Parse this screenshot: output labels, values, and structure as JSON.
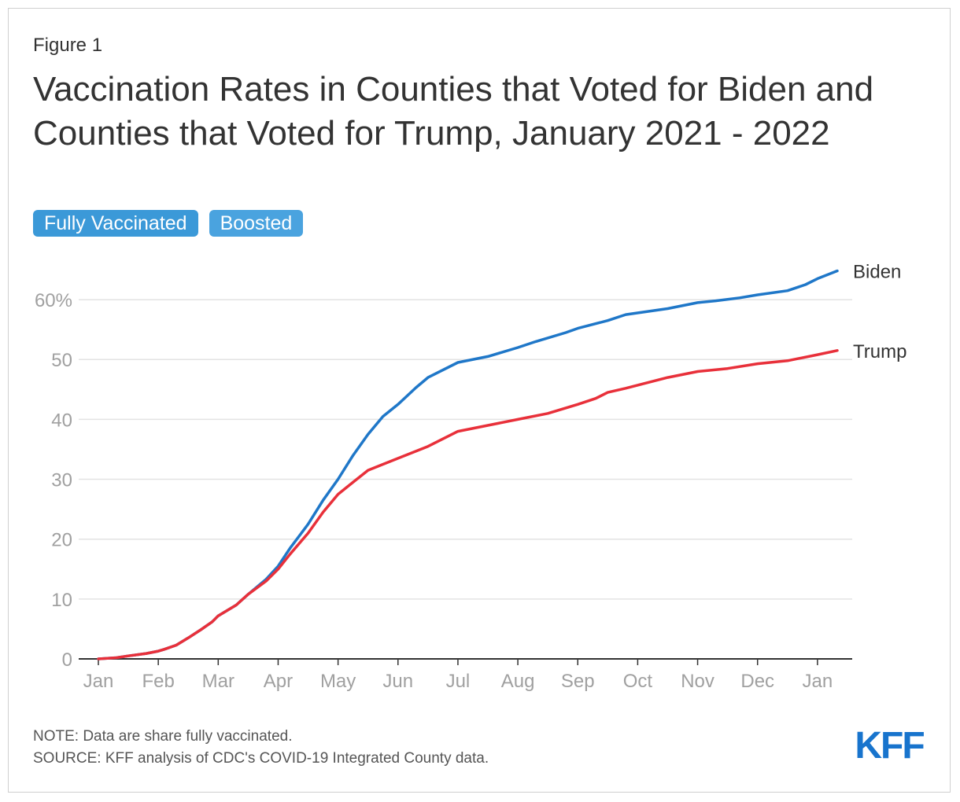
{
  "figure_label": "Figure 1",
  "title": "Vaccination Rates in Counties that Voted for Biden and Counties that Voted for Trump, January 2021 - 2022",
  "tabs": [
    {
      "label": "Fully Vaccinated",
      "active": true
    },
    {
      "label": "Boosted",
      "active": false
    }
  ],
  "note": "NOTE: Data are share fully vaccinated.",
  "source": "SOURCE: KFF analysis of CDC's COVID-19 Integrated County data.",
  "logo_text": "KFF",
  "colors": {
    "biden": "#1f77c8",
    "trump": "#e8303a",
    "grid": "#e3e3e3",
    "axis": "#333333",
    "tab": "#3b99d8",
    "logo": "#1874cd"
  },
  "chart_data": {
    "type": "line",
    "title": "Vaccination Rates in Counties that Voted for Biden and Counties that Voted for Trump, January 2021 - 2022",
    "xlabel": "",
    "ylabel": "",
    "ylim": [
      0,
      65
    ],
    "yticks": [
      0,
      10,
      20,
      30,
      40,
      50,
      60
    ],
    "ytick_labels": [
      "0",
      "10",
      "20",
      "30",
      "40",
      "50",
      "60%"
    ],
    "xticks": [
      0,
      1,
      2,
      3,
      4,
      5,
      6,
      7,
      8,
      9,
      10,
      11,
      12
    ],
    "xtick_labels": [
      "Jan",
      "Feb",
      "Mar",
      "Apr",
      "May",
      "Jun",
      "Jul",
      "Aug",
      "Sep",
      "Oct",
      "Nov",
      "Dec",
      "Jan"
    ],
    "xlim": [
      0,
      12.33
    ],
    "grid": true,
    "series": [
      {
        "name": "Biden",
        "points": [
          [
            0,
            0
          ],
          [
            0.3,
            0.2
          ],
          [
            0.5,
            0.5
          ],
          [
            0.8,
            0.9
          ],
          [
            1,
            1.3
          ],
          [
            1.1,
            1.6
          ],
          [
            1.3,
            2.3
          ],
          [
            1.5,
            3.5
          ],
          [
            1.7,
            4.8
          ],
          [
            1.9,
            6.2
          ],
          [
            2,
            7.2
          ],
          [
            2.3,
            9
          ],
          [
            2.5,
            10.8
          ],
          [
            2.8,
            13.3
          ],
          [
            3,
            15.5
          ],
          [
            3.2,
            18.5
          ],
          [
            3.5,
            22.5
          ],
          [
            3.75,
            26.5
          ],
          [
            4,
            30
          ],
          [
            4.25,
            34
          ],
          [
            4.5,
            37.5
          ],
          [
            4.75,
            40.5
          ],
          [
            5,
            42.5
          ],
          [
            5.3,
            45.3
          ],
          [
            5.5,
            47
          ],
          [
            6,
            49.5
          ],
          [
            6.5,
            50.5
          ],
          [
            7,
            52
          ],
          [
            7.3,
            53
          ],
          [
            7.8,
            54.5
          ],
          [
            8,
            55.2
          ],
          [
            8.5,
            56.5
          ],
          [
            8.8,
            57.5
          ],
          [
            9.5,
            58.5
          ],
          [
            10,
            59.5
          ],
          [
            10.3,
            59.8
          ],
          [
            10.7,
            60.3
          ],
          [
            11,
            60.8
          ],
          [
            11.5,
            61.5
          ],
          [
            11.8,
            62.5
          ],
          [
            12,
            63.5
          ],
          [
            12.33,
            64.8
          ]
        ]
      },
      {
        "name": "Trump",
        "points": [
          [
            0,
            0
          ],
          [
            0.3,
            0.2
          ],
          [
            0.5,
            0.5
          ],
          [
            0.8,
            0.9
          ],
          [
            1,
            1.3
          ],
          [
            1.1,
            1.6
          ],
          [
            1.3,
            2.3
          ],
          [
            1.5,
            3.5
          ],
          [
            1.7,
            4.8
          ],
          [
            1.9,
            6.2
          ],
          [
            2,
            7.2
          ],
          [
            2.3,
            9
          ],
          [
            2.5,
            10.8
          ],
          [
            2.8,
            13
          ],
          [
            3,
            15
          ],
          [
            3.2,
            17.5
          ],
          [
            3.5,
            21
          ],
          [
            3.75,
            24.5
          ],
          [
            4,
            27.5
          ],
          [
            4.25,
            29.5
          ],
          [
            4.5,
            31.5
          ],
          [
            4.75,
            32.5
          ],
          [
            5,
            33.5
          ],
          [
            5.5,
            35.5
          ],
          [
            6,
            38
          ],
          [
            6.5,
            39
          ],
          [
            7,
            40
          ],
          [
            7.5,
            41
          ],
          [
            8,
            42.5
          ],
          [
            8.3,
            43.5
          ],
          [
            8.5,
            44.5
          ],
          [
            8.8,
            45.2
          ],
          [
            9.5,
            47
          ],
          [
            10,
            48
          ],
          [
            10.5,
            48.5
          ],
          [
            11,
            49.3
          ],
          [
            11.5,
            49.8
          ],
          [
            12,
            50.8
          ],
          [
            12.33,
            51.5
          ]
        ]
      }
    ]
  }
}
